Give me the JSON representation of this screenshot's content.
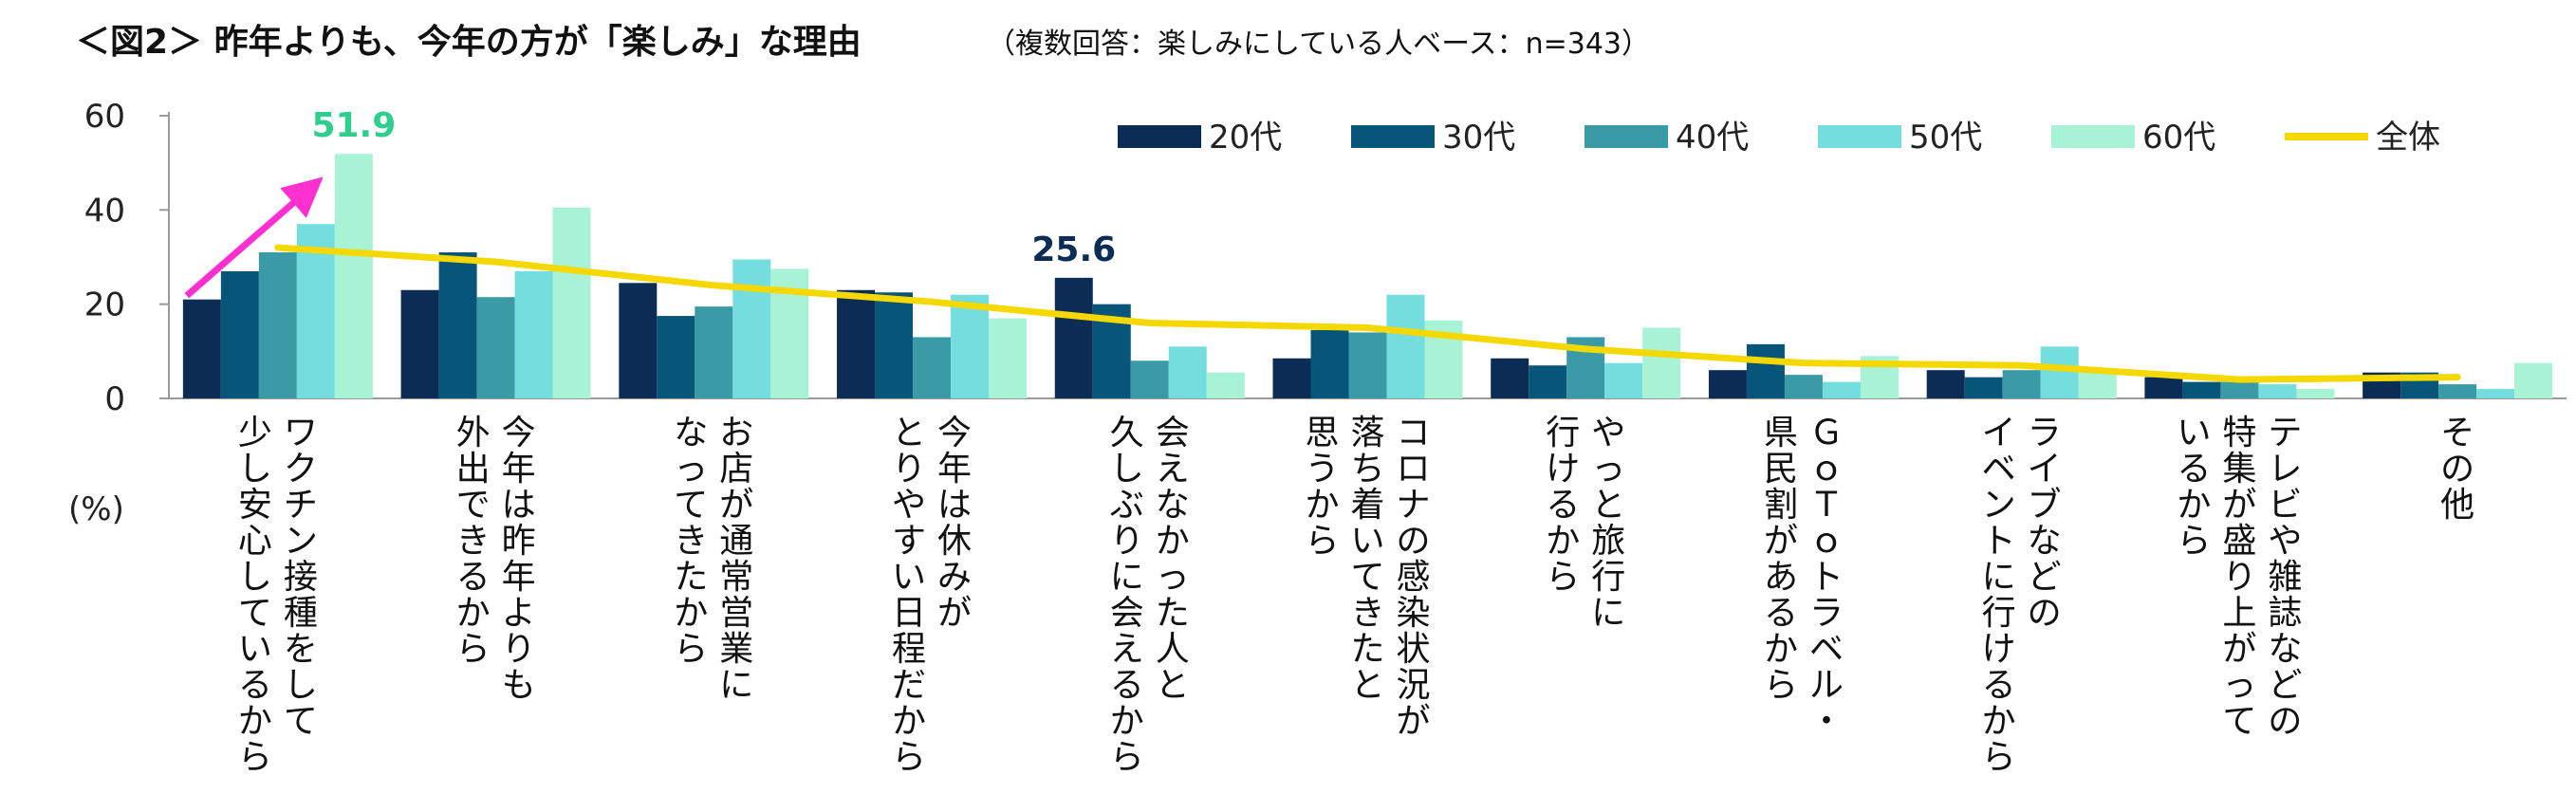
{
  "chart_data": {
    "type": "bar",
    "title": "＜図2＞ 昨年よりも、今年の方が「楽しみ」な理由",
    "subtitle": "（複数回答：楽しみにしている人ベース：n=343）",
    "ylabel": "(%)",
    "ylim": [
      0,
      60
    ],
    "yticks": [
      "0",
      "20",
      "40",
      "60"
    ],
    "categories": [
      [
        "ワクチン接種をして",
        "少し安心しているから"
      ],
      [
        "今年は昨年よりも",
        "外出できるから"
      ],
      [
        "お店が通常営業に",
        "なってきたから"
      ],
      [
        "今年は休みが",
        "とりやすい日程だから"
      ],
      [
        "会えなかった人と",
        "久しぶりに会えるから"
      ],
      [
        "コロナの感染状況が",
        "落ち着いてきたと",
        "思うから"
      ],
      [
        "やっと旅行に",
        "行けるから"
      ],
      [
        "ＧｏＴｏトラベル・",
        "県民割があるから"
      ],
      [
        "ライブなどの",
        "イベントに行けるから"
      ],
      [
        "テレビや雑誌などの",
        "特集が盛り上がって",
        "いるから"
      ],
      [
        "その他"
      ]
    ],
    "series": [
      {
        "name": "20代",
        "color": "#0b2d55",
        "values": [
          21.0,
          23.0,
          24.5,
          23.0,
          25.6,
          8.5,
          8.5,
          6.0,
          6.0,
          4.5,
          5.5
        ]
      },
      {
        "name": "30代",
        "color": "#08557a",
        "values": [
          27.0,
          31.0,
          17.5,
          22.5,
          20.0,
          14.5,
          7.0,
          11.5,
          4.5,
          3.5,
          5.5
        ]
      },
      {
        "name": "40代",
        "color": "#3a9aa5",
        "values": [
          31.0,
          21.5,
          19.5,
          13.0,
          8.0,
          14.0,
          13.0,
          5.0,
          6.0,
          3.5,
          3.0
        ]
      },
      {
        "name": "50代",
        "color": "#74dede",
        "values": [
          37.0,
          27.0,
          29.5,
          22.0,
          11.0,
          22.0,
          7.5,
          3.5,
          11.0,
          3.0,
          2.0
        ]
      },
      {
        "name": "60代",
        "color": "#a8f2d6",
        "values": [
          51.9,
          40.5,
          27.5,
          17.0,
          5.5,
          16.5,
          15.0,
          9.0,
          5.5,
          2.0,
          7.5
        ]
      }
    ],
    "total": {
      "name": "全体",
      "color": "#f5d800",
      "values": [
        32.0,
        29.0,
        24.0,
        20.5,
        16.0,
        15.0,
        10.5,
        7.5,
        7.0,
        4.0,
        4.5
      ]
    },
    "annotations": [
      {
        "text": "51.9",
        "category_index": 0,
        "series_index": 4,
        "color": "#2ecf8e"
      },
      {
        "text": "25.6",
        "category_index": 4,
        "series_index": 0,
        "color": "#0b2d55"
      }
    ],
    "arrow_color": "#ff2fd0",
    "legend_position": "top-right",
    "grid": false
  }
}
